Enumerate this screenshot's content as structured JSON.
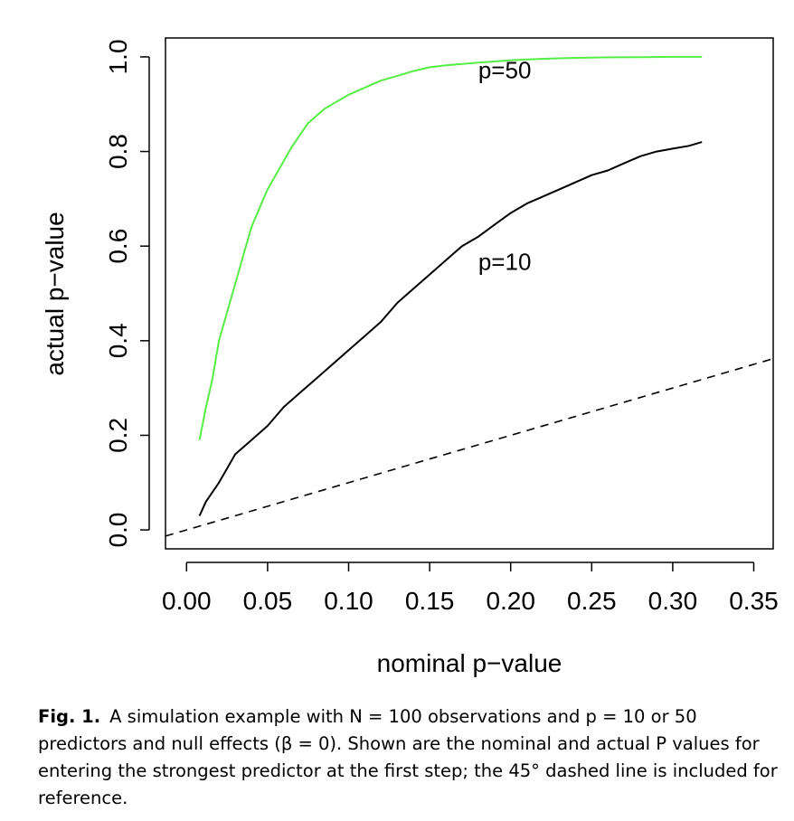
{
  "chart_data": {
    "type": "line",
    "xlabel": "nominal p−value",
    "ylabel": "actual p−value",
    "xlim": [
      -0.013,
      0.362
    ],
    "ylim": [
      -0.04,
      1.04
    ],
    "x_ticks": [
      "0.00",
      "0.05",
      "0.10",
      "0.15",
      "0.20",
      "0.25",
      "0.30",
      "0.35"
    ],
    "x_tick_values": [
      0,
      0.05,
      0.1,
      0.15,
      0.2,
      0.25,
      0.3,
      0.35
    ],
    "y_ticks": [
      "0.0",
      "0.2",
      "0.4",
      "0.6",
      "0.8",
      "1.0"
    ],
    "y_tick_values": [
      0,
      0.2,
      0.4,
      0.6,
      0.8,
      1.0
    ],
    "grid": false,
    "series": [
      {
        "name": "p=50",
        "color": "#55ee44",
        "style": "solid",
        "x": [
          0.008,
          0.012,
          0.016,
          0.02,
          0.025,
          0.03,
          0.035,
          0.04,
          0.045,
          0.05,
          0.055,
          0.06,
          0.065,
          0.07,
          0.075,
          0.08,
          0.085,
          0.09,
          0.095,
          0.1,
          0.11,
          0.12,
          0.13,
          0.14,
          0.15,
          0.16,
          0.18,
          0.2,
          0.22,
          0.24,
          0.26,
          0.28,
          0.3,
          0.318
        ],
        "y": [
          0.19,
          0.26,
          0.32,
          0.4,
          0.46,
          0.52,
          0.58,
          0.64,
          0.68,
          0.72,
          0.75,
          0.78,
          0.81,
          0.835,
          0.86,
          0.875,
          0.89,
          0.9,
          0.91,
          0.92,
          0.935,
          0.95,
          0.96,
          0.97,
          0.978,
          0.982,
          0.988,
          0.993,
          0.996,
          0.998,
          0.999,
          0.9995,
          1.0,
          1.0
        ]
      },
      {
        "name": "p=10",
        "color": "#000000",
        "style": "solid",
        "x": [
          0.008,
          0.012,
          0.016,
          0.02,
          0.025,
          0.03,
          0.04,
          0.05,
          0.06,
          0.07,
          0.08,
          0.09,
          0.1,
          0.11,
          0.12,
          0.13,
          0.14,
          0.15,
          0.16,
          0.17,
          0.18,
          0.19,
          0.2,
          0.21,
          0.22,
          0.23,
          0.24,
          0.25,
          0.26,
          0.27,
          0.28,
          0.29,
          0.3,
          0.31,
          0.318
        ],
        "y": [
          0.03,
          0.06,
          0.08,
          0.1,
          0.13,
          0.16,
          0.19,
          0.22,
          0.26,
          0.29,
          0.32,
          0.35,
          0.38,
          0.41,
          0.44,
          0.48,
          0.51,
          0.54,
          0.57,
          0.6,
          0.62,
          0.645,
          0.67,
          0.69,
          0.705,
          0.72,
          0.735,
          0.75,
          0.76,
          0.775,
          0.79,
          0.8,
          0.806,
          0.812,
          0.82
        ]
      },
      {
        "name": "",
        "color": "#000000",
        "style": "dashed",
        "x": [
          -0.013,
          0.362
        ],
        "y": [
          -0.013,
          0.362
        ]
      }
    ],
    "annotations": [
      {
        "text": "p=50",
        "x": 0.18,
        "y": 0.955
      },
      {
        "text": "p=10",
        "x": 0.18,
        "y": 0.55
      }
    ]
  },
  "caption": {
    "label": "Fig. 1.",
    "text": "A simulation example with N = 100 observations and p = 10 or 50 predictors and null effects (β = 0). Shown are the nominal and actual P values for entering the strongest predictor at the first step; the 45° dashed line is included for reference."
  }
}
